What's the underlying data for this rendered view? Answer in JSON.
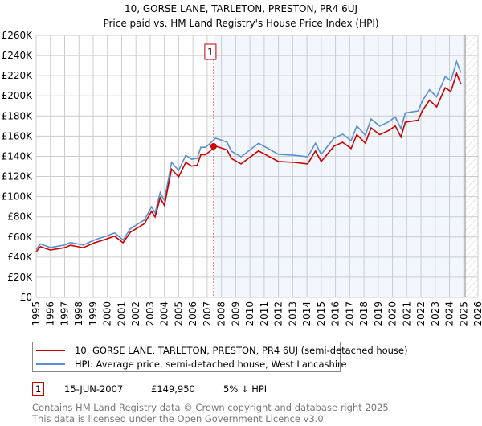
{
  "chart_data": {
    "type": "line",
    "title": "10, GORSE LANE, TARLETON, PRESTON, PR4 6UJ",
    "subtitle": "Price paid vs. HM Land Registry's House Price Index (HPI)",
    "xlim": [
      1995,
      2026
    ],
    "ylim": [
      0,
      260000
    ],
    "yticks": [
      0,
      20000,
      40000,
      60000,
      80000,
      100000,
      120000,
      140000,
      160000,
      180000,
      200000,
      220000,
      240000,
      260000
    ],
    "ytick_labels": [
      "£0",
      "£20K",
      "£40K",
      "£60K",
      "£80K",
      "£100K",
      "£120K",
      "£140K",
      "£160K",
      "£180K",
      "£200K",
      "£220K",
      "£240K",
      "£260K"
    ],
    "xticks": [
      1995,
      1996,
      1997,
      1998,
      1999,
      2000,
      2001,
      2002,
      2003,
      2004,
      2005,
      2006,
      2007,
      2008,
      2009,
      2010,
      2011,
      2012,
      2013,
      2014,
      2015,
      2016,
      2017,
      2018,
      2019,
      2020,
      2021,
      2022,
      2023,
      2024,
      2025,
      2026
    ],
    "grid": true,
    "shaded_from": 2007.45,
    "hatched_from": 2025.1,
    "series": [
      {
        "name": "10, GORSE LANE, TARLETON, PRESTON, PR4 6UJ (semi-detached house)",
        "color": "#cc0000",
        "x": [
          1995.0,
          1995.3,
          1996.0,
          1997.0,
          1997.4,
          1998.3,
          1999.1,
          1999.95,
          2000.5,
          2001.1,
          2001.6,
          2002.05,
          2002.6,
          2003.1,
          2003.35,
          2003.7,
          2004.0,
          2004.5,
          2005.0,
          2005.5,
          2005.9,
          2006.3,
          2006.55,
          2006.9,
          2007.6,
          2008.1,
          2008.4,
          2008.7,
          2009.37,
          2010.6,
          2012.0,
          2013.1,
          2014.05,
          2014.6,
          2015.0,
          2015.9,
          2016.5,
          2017.1,
          2017.5,
          2018.1,
          2018.5,
          2019.1,
          2019.7,
          2020.2,
          2020.6,
          2020.9,
          2021.8,
          2022.1,
          2022.6,
          2023.1,
          2023.7,
          2024.1,
          2024.5,
          2024.8
        ],
        "y": [
          45400,
          50400,
          47000,
          49400,
          51800,
          49400,
          54200,
          58000,
          60800,
          54200,
          64600,
          68400,
          73200,
          85500,
          79800,
          98800,
          91200,
          127300,
          119700,
          134000,
          130200,
          131100,
          141600,
          141600,
          150000,
          147700,
          146300,
          137800,
          132500,
          145400,
          134900,
          134000,
          132500,
          145400,
          134900,
          150100,
          153900,
          147700,
          161500,
          153000,
          168200,
          161500,
          165300,
          170000,
          159100,
          173900,
          175800,
          185300,
          195700,
          189000,
          208000,
          204300,
          222300,
          211900
        ]
      },
      {
        "name": "HPI: Average price, semi-detached house, West Lancashire",
        "color": "#5b8fd0",
        "x": [
          1995.0,
          1995.3,
          1996.0,
          1997.0,
          1997.4,
          1998.3,
          1999.1,
          1999.95,
          2000.5,
          2001.1,
          2001.6,
          2002.05,
          2002.6,
          2003.1,
          2003.35,
          2003.7,
          2004.0,
          2004.5,
          2005.0,
          2005.5,
          2005.9,
          2006.3,
          2006.55,
          2006.9,
          2007.6,
          2008.1,
          2008.4,
          2008.7,
          2009.37,
          2010.6,
          2012.0,
          2013.1,
          2014.05,
          2014.6,
          2015.0,
          2015.9,
          2016.5,
          2017.1,
          2017.5,
          2018.1,
          2018.5,
          2019.1,
          2019.7,
          2020.2,
          2020.6,
          2020.9,
          2021.8,
          2022.1,
          2022.6,
          2023.1,
          2023.7,
          2024.1,
          2024.5,
          2024.8
        ],
        "y": [
          47800,
          53000,
          49500,
          52000,
          54500,
          52000,
          57000,
          61000,
          64000,
          57000,
          68000,
          72000,
          77000,
          90000,
          84000,
          104000,
          96000,
          134000,
          126000,
          141000,
          137000,
          138000,
          149000,
          149000,
          158000,
          155500,
          154000,
          145000,
          139500,
          153000,
          142000,
          141000,
          139500,
          153000,
          142000,
          158000,
          162000,
          155500,
          170000,
          161000,
          177000,
          170000,
          174000,
          179000,
          167500,
          183000,
          185000,
          195000,
          206000,
          199000,
          219000,
          215000,
          234000,
          223000
        ]
      }
    ],
    "annotations": [
      {
        "label": "1",
        "x": 2007.45,
        "y": 149950
      }
    ]
  },
  "legend": {
    "red_label": "10, GORSE LANE, TARLETON, PRESTON, PR4 6UJ (semi-detached house)",
    "blue_label": "HPI: Average price, semi-detached house, West Lancashire"
  },
  "transaction": {
    "num": "1",
    "date": "15-JUN-2007",
    "price": "£149,950",
    "hpi": "5% ↓ HPI"
  },
  "footer": {
    "line1": "Contains HM Land Registry data © Crown copyright and database right 2025.",
    "line2": "This data is licensed under the Open Government Licence v3.0."
  }
}
